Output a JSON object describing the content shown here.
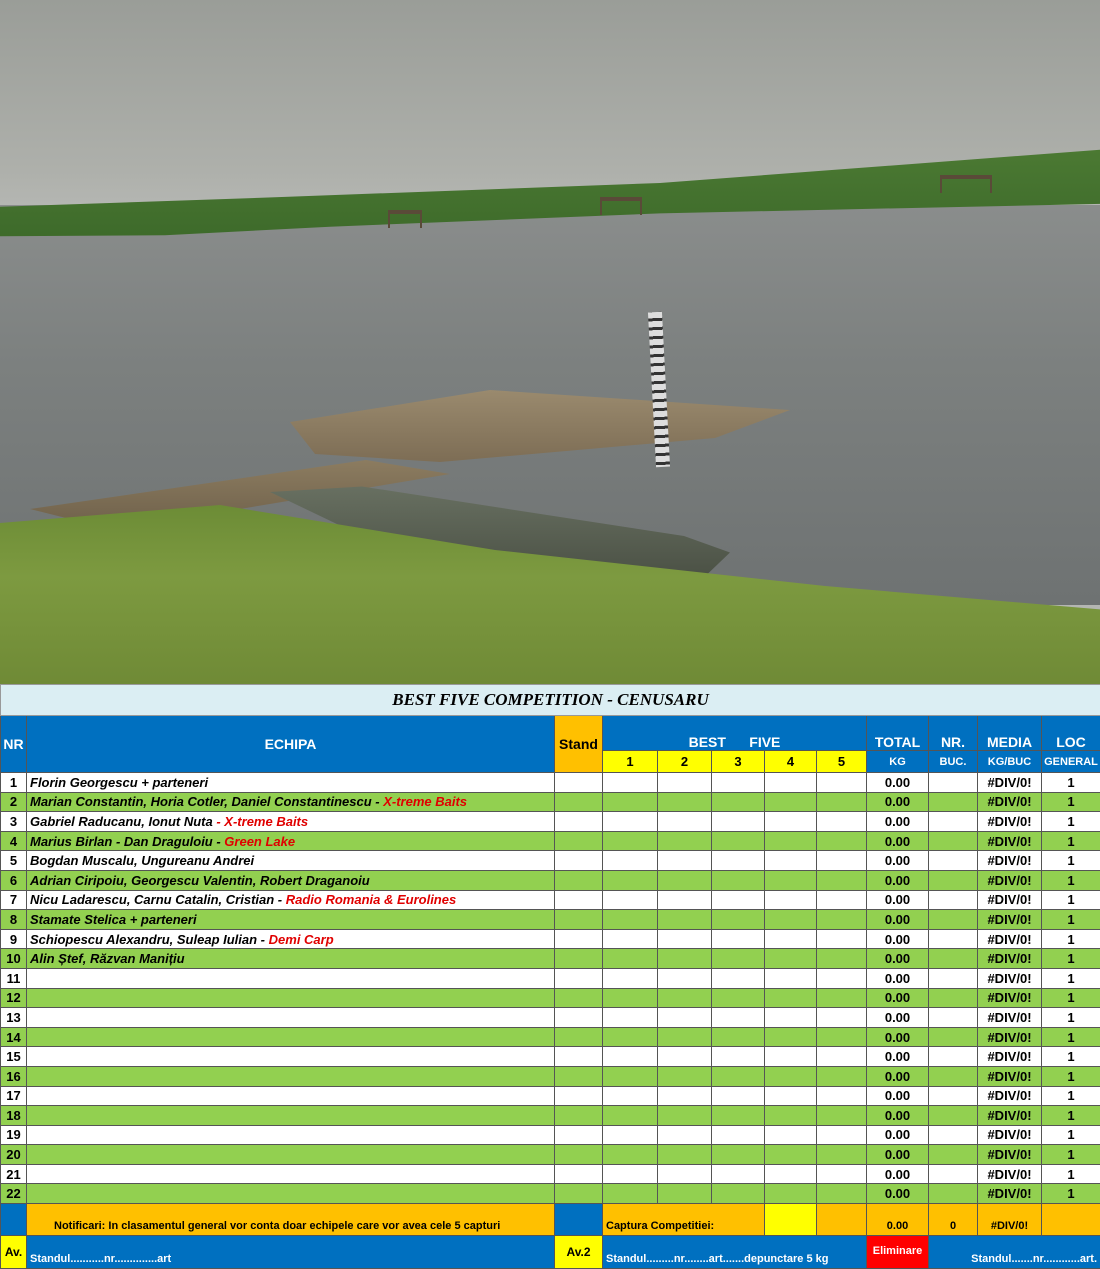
{
  "title": "BEST FIVE COMPETITION - CENUSARU",
  "headers": {
    "nr": "NR",
    "echipa": "ECHIPA",
    "stand": "Stand",
    "best": "BEST",
    "five": "FIVE",
    "catches": [
      "1",
      "2",
      "3",
      "4",
      "5"
    ],
    "total": "TOTAL",
    "total_sub": "KG",
    "nrbuc": "NR.",
    "nrbuc_sub": "BUC.",
    "media": "MEDIA",
    "media_sub": "KG/BUC",
    "loc": "LOC",
    "loc_sub": "GENERAL"
  },
  "rows": [
    {
      "nr": "1",
      "team": "Florin Georgescu + parteneri",
      "sponsor": "",
      "total": "0.00",
      "media": "#DIV/0!",
      "loc": "1"
    },
    {
      "nr": "2",
      "team": "Marian Constantin, Horia Cotler, Daniel Constantinescu - ",
      "sponsor": "X-treme Baits",
      "total": "0.00",
      "media": "#DIV/0!",
      "loc": "1"
    },
    {
      "nr": "3",
      "team": "Gabriel Raducanu, Ionut Nuta ",
      "sponsor": "- X-treme Baits",
      "total": "0.00",
      "media": "#DIV/0!",
      "loc": "1"
    },
    {
      "nr": "4",
      "team": "Marius Birlan - Dan Draguloiu -  ",
      "sponsor": "Green Lake",
      "total": "0.00",
      "media": "#DIV/0!",
      "loc": "1"
    },
    {
      "nr": "5",
      "team": "Bogdan Muscalu, Ungureanu Andrei",
      "sponsor": "",
      "total": "0.00",
      "media": "#DIV/0!",
      "loc": "1"
    },
    {
      "nr": "6",
      "team": "Adrian Ciripoiu, Georgescu Valentin, Robert Draganoiu",
      "sponsor": "",
      "total": "0.00",
      "media": "#DIV/0!",
      "loc": "1"
    },
    {
      "nr": "7",
      "team": "Nicu Ladarescu, Carnu Catalin, Cristian - ",
      "sponsor": "Radio Romania & Eurolines",
      "total": "0.00",
      "media": "#DIV/0!",
      "loc": "1"
    },
    {
      "nr": "8",
      "team": "Stamate Stelica + parteneri",
      "sponsor": "",
      "total": "0.00",
      "media": "#DIV/0!",
      "loc": "1"
    },
    {
      "nr": "9",
      "team": "Schiopescu Alexandru, Suleap Iulian  -  ",
      "sponsor": "Demi Carp",
      "total": "0.00",
      "media": "#DIV/0!",
      "loc": "1"
    },
    {
      "nr": "10",
      "team": "Alin Ștef, Răzvan Manițiu",
      "sponsor": "",
      "total": "0.00",
      "media": "#DIV/0!",
      "loc": "1"
    },
    {
      "nr": "11",
      "team": "",
      "sponsor": "",
      "total": "0.00",
      "media": "#DIV/0!",
      "loc": "1"
    },
    {
      "nr": "12",
      "team": "",
      "sponsor": "",
      "total": "0.00",
      "media": "#DIV/0!",
      "loc": "1"
    },
    {
      "nr": "13",
      "team": "",
      "sponsor": "",
      "total": "0.00",
      "media": "#DIV/0!",
      "loc": "1"
    },
    {
      "nr": "14",
      "team": "",
      "sponsor": "",
      "total": "0.00",
      "media": "#DIV/0!",
      "loc": "1"
    },
    {
      "nr": "15",
      "team": "",
      "sponsor": "",
      "total": "0.00",
      "media": "#DIV/0!",
      "loc": "1"
    },
    {
      "nr": "16",
      "team": "",
      "sponsor": "",
      "total": "0.00",
      "media": "#DIV/0!",
      "loc": "1"
    },
    {
      "nr": "17",
      "team": "",
      "sponsor": "",
      "total": "0.00",
      "media": "#DIV/0!",
      "loc": "1"
    },
    {
      "nr": "18",
      "team": "",
      "sponsor": "",
      "total": "0.00",
      "media": "#DIV/0!",
      "loc": "1"
    },
    {
      "nr": "19",
      "team": "",
      "sponsor": "",
      "total": "0.00",
      "media": "#DIV/0!",
      "loc": "1"
    },
    {
      "nr": "20",
      "team": "",
      "sponsor": "",
      "total": "0.00",
      "media": "#DIV/0!",
      "loc": "1"
    },
    {
      "nr": "21",
      "team": "",
      "sponsor": "",
      "total": "0.00",
      "media": "#DIV/0!",
      "loc": "1"
    },
    {
      "nr": "22",
      "team": "",
      "sponsor": "",
      "total": "0.00",
      "media": "#DIV/0!",
      "loc": "1"
    }
  ],
  "footer": {
    "notice": "Notificari:    In clasamentul general vor conta doar echipele care vor avea cele 5 capturi",
    "capture_label": "Captura Competitiei:",
    "capture_total": "0.00",
    "capture_count": "0",
    "capture_media": "#DIV/0!",
    "av": "Av.",
    "standul1": "Standul...........nr..............art",
    "av2": "Av.2",
    "standul2": "Standul.........nr........art.......depunctare  5 kg",
    "eliminare": "Eliminare",
    "standul3": "Standul.......nr............art."
  },
  "colors": {
    "blue": "#0070c0",
    "green": "#92d050",
    "orange": "#ffc000",
    "yellow": "#ffff00",
    "red": "#ff0000",
    "sponsor": "#e00000"
  }
}
